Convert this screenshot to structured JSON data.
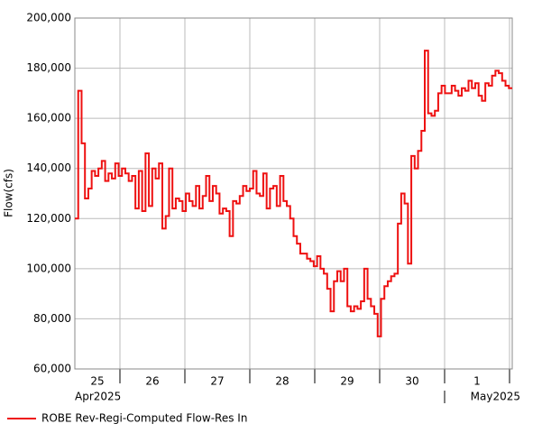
{
  "chart_data": {
    "type": "line",
    "step": true,
    "y_label": "Flow(cfs)",
    "day_labels": [
      "25",
      "26",
      "27",
      "28",
      "29",
      "30",
      "1"
    ],
    "month_labels": [
      "Apr2025",
      "May2025"
    ],
    "ylim": [
      60000,
      200000
    ],
    "yticks": [
      {
        "value": 60000,
        "label": "60,000"
      },
      {
        "value": 80000,
        "label": "80,000"
      },
      {
        "value": 100000,
        "label": "100,000"
      },
      {
        "value": 120000,
        "label": "120,000"
      },
      {
        "value": 140000,
        "label": "140,000"
      },
      {
        "value": 160000,
        "label": "160,000"
      },
      {
        "value": 180000,
        "label": "180,000"
      },
      {
        "value": 200000,
        "label": "200,000"
      }
    ],
    "grid": true,
    "legend": "bottom",
    "series": [
      {
        "name": "ROBE Rev-Regi-Computed Flow-Res In",
        "color": "#ee1111",
        "values": [
          120000,
          171000,
          150000,
          128000,
          132000,
          139000,
          137000,
          140000,
          143000,
          135000,
          138000,
          136000,
          142000,
          137000,
          140000,
          138000,
          135000,
          137000,
          124000,
          139000,
          123000,
          146000,
          125000,
          140000,
          136000,
          142000,
          116000,
          121000,
          140000,
          124000,
          128000,
          127000,
          123000,
          130000,
          127000,
          125000,
          133000,
          124000,
          129000,
          137000,
          127000,
          133000,
          130000,
          122000,
          124000,
          123000,
          113000,
          127000,
          126000,
          129000,
          133000,
          131000,
          132000,
          139000,
          130000,
          129000,
          138000,
          124000,
          132000,
          133000,
          125000,
          137000,
          127000,
          125000,
          120000,
          113000,
          110000,
          106000,
          106000,
          104000,
          103000,
          101000,
          105000,
          100000,
          98000,
          92000,
          83000,
          95000,
          99000,
          95000,
          100000,
          85000,
          83000,
          85000,
          84000,
          87000,
          100000,
          88000,
          85000,
          82000,
          73000,
          88000,
          93000,
          95000,
          97000,
          98000,
          118000,
          130000,
          126000,
          102000,
          145000,
          140000,
          147000,
          155000,
          187000,
          162000,
          161000,
          163000,
          170000,
          173000,
          170000,
          170000,
          173000,
          171000,
          169000,
          172000,
          171000,
          175000,
          172000,
          174000,
          169000,
          167000,
          174000,
          173000,
          177000,
          179000,
          178000,
          175000,
          173000,
          172000
        ]
      }
    ]
  }
}
